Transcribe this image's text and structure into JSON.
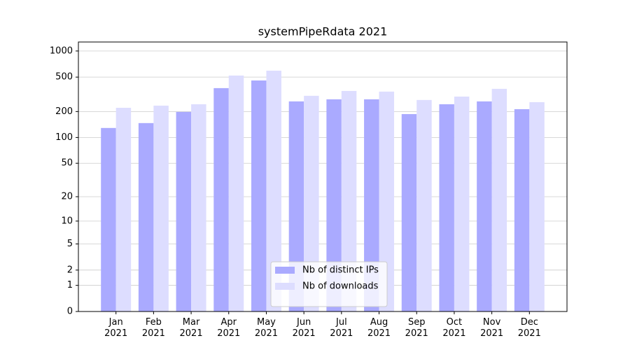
{
  "chart_data": {
    "type": "bar",
    "title": "systemPipeRdata 2021",
    "categories": [
      "Jan\n2021",
      "Feb\n2021",
      "Mar\n2021",
      "Apr\n2021",
      "May\n2021",
      "Jun\n2021",
      "Jul\n2021",
      "Aug\n2021",
      "Sep\n2021",
      "Oct\n2021",
      "Nov\n2021",
      "Dec\n2021"
    ],
    "series": [
      {
        "name": "Nb of distinct IPs",
        "color": "#aaaaff",
        "values": [
          129,
          147,
          198,
          373,
          457,
          262,
          277,
          277,
          187,
          243,
          262,
          213
        ]
      },
      {
        "name": "Nb of downloads",
        "color": "#ddddff",
        "values": [
          221,
          234,
          243,
          521,
          593,
          304,
          346,
          340,
          272,
          298,
          366,
          257
        ]
      }
    ],
    "yscale": "log1p",
    "ylim": [
      0,
      1270
    ],
    "yticks": [
      0,
      1,
      2,
      5,
      10,
      20,
      50,
      100,
      200,
      500,
      1000
    ],
    "grid": true,
    "legend": "lower center"
  }
}
